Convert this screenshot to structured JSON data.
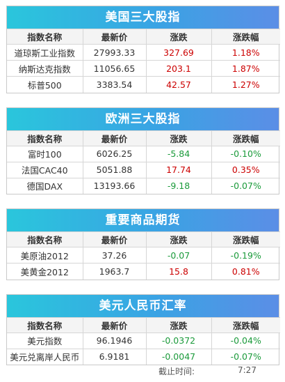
{
  "headers": {
    "name": "指数名称",
    "price": "最新价",
    "change": "涨跌",
    "pct": "涨跌幅"
  },
  "sections": [
    {
      "title": "美国三大股指",
      "rows": [
        {
          "name": "道琼斯工业指数",
          "price": "27993.33",
          "change": "327.69",
          "pct": "1.18%",
          "dir": "up"
        },
        {
          "name": "纳斯达克指数",
          "price": "11056.65",
          "change": "203.1",
          "pct": "1.87%",
          "dir": "up"
        },
        {
          "name": "标普500",
          "price": "3383.54",
          "change": "42.57",
          "pct": "1.27%",
          "dir": "up"
        }
      ]
    },
    {
      "title": "欧洲三大股指",
      "rows": [
        {
          "name": "富时100",
          "price": "6026.25",
          "change": "-5.84",
          "pct": "-0.10%",
          "dir": "down"
        },
        {
          "name": "法国CAC40",
          "price": "5051.88",
          "change": "17.74",
          "pct": "0.35%",
          "dir": "up"
        },
        {
          "name": "德国DAX",
          "price": "13193.66",
          "change": "-9.18",
          "pct": "-0.07%",
          "dir": "down"
        }
      ]
    },
    {
      "title": "重要商品期货",
      "rows": [
        {
          "name": "美原油2012",
          "price": "37.26",
          "change": "-0.07",
          "pct": "-0.19%",
          "dir": "down"
        },
        {
          "name": "美黄金2012",
          "price": "1963.7",
          "change": "15.8",
          "pct": "0.81%",
          "dir": "up"
        }
      ]
    },
    {
      "title": "美元人民币汇率",
      "rows": [
        {
          "name": "美元指数",
          "price": "96.1946",
          "change": "-0.0372",
          "pct": "-0.04%",
          "dir": "down"
        },
        {
          "name": "美元兑离岸人民币",
          "price": "6.9181",
          "change": "-0.0047",
          "pct": "-0.07%",
          "dir": "down"
        }
      ]
    }
  ],
  "footer": {
    "label": "截止时间:",
    "time": "7:27"
  },
  "colors": {
    "up": "#cc0000",
    "down": "#1a9a3a",
    "banner_start": "#2ac6dc",
    "banner_end": "#5b8ee6"
  }
}
